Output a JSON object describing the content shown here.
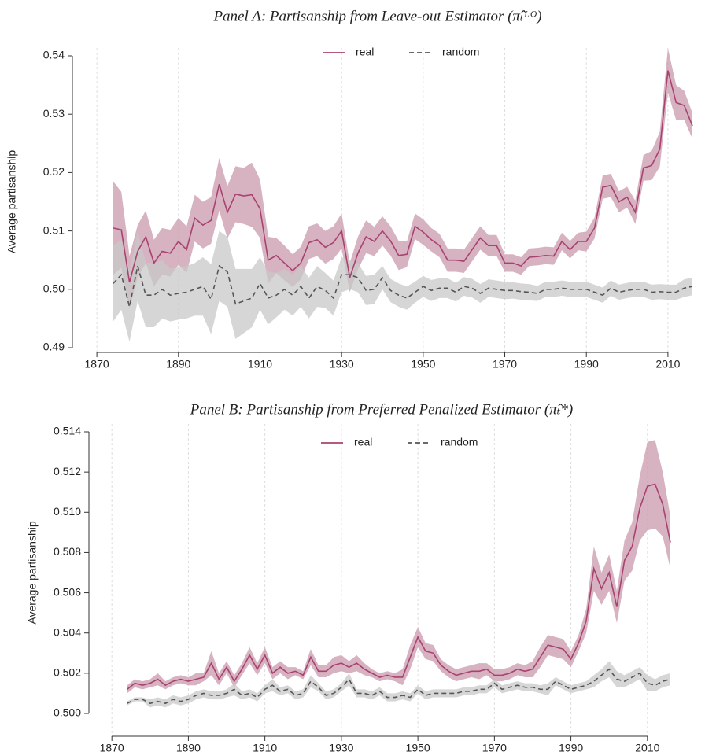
{
  "chart_data": [
    {
      "type": "line",
      "title": "Panel A: Partisanship from Leave-out Estimator (π̂ₜᴸᴼ)",
      "y_label": "Average partisanship",
      "x": [
        1874,
        1876,
        1878,
        1880,
        1882,
        1884,
        1886,
        1888,
        1890,
        1892,
        1894,
        1896,
        1898,
        1900,
        1902,
        1904,
        1906,
        1908,
        1910,
        1912,
        1914,
        1916,
        1918,
        1920,
        1922,
        1924,
        1926,
        1928,
        1930,
        1932,
        1934,
        1936,
        1938,
        1940,
        1942,
        1944,
        1946,
        1948,
        1950,
        1952,
        1954,
        1956,
        1958,
        1960,
        1962,
        1964,
        1966,
        1968,
        1970,
        1972,
        1974,
        1976,
        1978,
        1980,
        1982,
        1984,
        1986,
        1988,
        1990,
        1992,
        1994,
        1996,
        1998,
        2000,
        2002,
        2004,
        2006,
        2008,
        2010,
        2012,
        2014,
        2016
      ],
      "xlim": [
        1864,
        2016
      ],
      "xticks": [
        1870,
        1890,
        1910,
        1930,
        1950,
        1970,
        1990,
        2010
      ],
      "ylim": [
        0.49,
        0.54
      ],
      "yticks": [
        0.49,
        {
          "value": 0.5,
          "label": "0.50"
        },
        0.51,
        0.52,
        0.53,
        0.54
      ],
      "grid": true,
      "series": [
        {
          "name": "real",
          "color": "#a8426f",
          "band_color": "#c99aae",
          "dash": false,
          "values": [
            0.5105,
            0.5102,
            0.5012,
            0.5065,
            0.509,
            0.5045,
            0.5065,
            0.5062,
            0.5082,
            0.5068,
            0.5122,
            0.511,
            0.5118,
            0.518,
            0.5132,
            0.5163,
            0.516,
            0.5162,
            0.5138,
            0.505,
            0.5058,
            0.5045,
            0.5032,
            0.5045,
            0.508,
            0.5085,
            0.5072,
            0.508,
            0.51,
            0.502,
            0.5062,
            0.509,
            0.5082,
            0.51,
            0.5083,
            0.5058,
            0.506,
            0.5108,
            0.5098,
            0.5085,
            0.5075,
            0.505,
            0.505,
            0.5048,
            0.5068,
            0.5088,
            0.5075,
            0.5075,
            0.5045,
            0.5045,
            0.504,
            0.5055,
            0.5056,
            0.5058,
            0.5057,
            0.5082,
            0.5068,
            0.5082,
            0.5082,
            0.5105,
            0.5175,
            0.5178,
            0.515,
            0.5158,
            0.5132,
            0.5208,
            0.5212,
            0.524,
            0.5375,
            0.532,
            0.5315,
            0.528
          ],
          "errors": [
            0.008,
            0.0065,
            0.0045,
            0.0045,
            0.0045,
            0.004,
            0.004,
            0.004,
            0.004,
            0.004,
            0.004,
            0.004,
            0.004,
            0.0045,
            0.0045,
            0.0048,
            0.0048,
            0.0055,
            0.005,
            0.004,
            0.003,
            0.003,
            0.0028,
            0.0028,
            0.0028,
            0.0028,
            0.0028,
            0.0028,
            0.003,
            0.0025,
            0.0028,
            0.0028,
            0.0025,
            0.0025,
            0.0025,
            0.0025,
            0.0022,
            0.0022,
            0.0022,
            0.002,
            0.002,
            0.002,
            0.002,
            0.002,
            0.002,
            0.002,
            0.0018,
            0.0018,
            0.0015,
            0.0015,
            0.0015,
            0.0015,
            0.0015,
            0.0015,
            0.0015,
            0.0015,
            0.0015,
            0.0015,
            0.0017,
            0.0018,
            0.002,
            0.002,
            0.0018,
            0.0018,
            0.002,
            0.0022,
            0.0025,
            0.003,
            0.0038,
            0.003,
            0.0025,
            0.0022
          ]
        },
        {
          "name": "random",
          "color": "#555555",
          "band_color": "#c8c8c8",
          "dash": true,
          "values": [
            0.501,
            0.5025,
            0.497,
            0.504,
            0.499,
            0.499,
            0.5,
            0.499,
            0.4993,
            0.4995,
            0.5,
            0.5005,
            0.4983,
            0.504,
            0.503,
            0.4975,
            0.498,
            0.4985,
            0.501,
            0.4985,
            0.499,
            0.5,
            0.499,
            0.5005,
            0.4985,
            0.5005,
            0.4998,
            0.4985,
            0.5025,
            0.5025,
            0.502,
            0.4998,
            0.5,
            0.502,
            0.4998,
            0.499,
            0.4985,
            0.4995,
            0.5005,
            0.4998,
            0.5002,
            0.5002,
            0.4995,
            0.5005,
            0.5002,
            0.4993,
            0.5002,
            0.5,
            0.4998,
            0.4998,
            0.4996,
            0.4995,
            0.4993,
            0.5,
            0.5,
            0.5002,
            0.5,
            0.5,
            0.5,
            0.4995,
            0.499,
            0.5002,
            0.4995,
            0.4998,
            0.5,
            0.5,
            0.4995,
            0.4996,
            0.4995,
            0.4995,
            0.5002,
            0.5005
          ],
          "errors": [
            0.0065,
            0.006,
            0.006,
            0.006,
            0.0055,
            0.0055,
            0.005,
            0.0045,
            0.0045,
            0.0045,
            0.0045,
            0.005,
            0.006,
            0.006,
            0.006,
            0.006,
            0.0055,
            0.005,
            0.0045,
            0.0045,
            0.0038,
            0.0035,
            0.0035,
            0.0035,
            0.0035,
            0.0035,
            0.003,
            0.003,
            0.003,
            0.0025,
            0.0025,
            0.0025,
            0.0025,
            0.002,
            0.002,
            0.002,
            0.002,
            0.0018,
            0.0018,
            0.0018,
            0.0017,
            0.0017,
            0.0016,
            0.0016,
            0.0016,
            0.0016,
            0.0015,
            0.0015,
            0.0015,
            0.0014,
            0.0014,
            0.0014,
            0.0013,
            0.0013,
            0.0013,
            0.0013,
            0.0013,
            0.0013,
            0.0013,
            0.0013,
            0.0013,
            0.0013,
            0.0013,
            0.0013,
            0.0013,
            0.0013,
            0.0013,
            0.0013,
            0.0013,
            0.0013,
            0.0015,
            0.0015
          ]
        }
      ]
    },
    {
      "type": "line",
      "title": "Panel B: Partisanship from Preferred Penalized Estimator (π̂ₜ*)",
      "y_label": "Average partisanship",
      "x": [
        1874,
        1876,
        1878,
        1880,
        1882,
        1884,
        1886,
        1888,
        1890,
        1892,
        1894,
        1896,
        1898,
        1900,
        1902,
        1904,
        1906,
        1908,
        1910,
        1912,
        1914,
        1916,
        1918,
        1920,
        1922,
        1924,
        1926,
        1928,
        1930,
        1932,
        1934,
        1936,
        1938,
        1940,
        1942,
        1944,
        1946,
        1948,
        1950,
        1952,
        1954,
        1956,
        1958,
        1960,
        1962,
        1964,
        1966,
        1968,
        1970,
        1972,
        1974,
        1976,
        1978,
        1980,
        1982,
        1984,
        1986,
        1988,
        1990,
        1992,
        1994,
        1996,
        1998,
        2000,
        2002,
        2004,
        2006,
        2008,
        2010,
        2012,
        2014,
        2016
      ],
      "xlim": [
        1864,
        2016
      ],
      "xticks": [
        1870,
        1890,
        1910,
        1930,
        1950,
        1970,
        1990,
        2010
      ],
      "ylim": [
        0.5,
        0.514
      ],
      "yticks": [
        {
          "value": 0.5,
          "label": "0.500"
        },
        0.502,
        0.504,
        0.506,
        0.508,
        {
          "value": 0.51,
          "label": "0.510"
        },
        0.512,
        0.514
      ],
      "grid": true,
      "series": [
        {
          "name": "real",
          "color": "#a8426f",
          "band_color": "#c99aae",
          "dash": false,
          "values": [
            0.5012,
            0.5015,
            0.5014,
            0.5015,
            0.5017,
            0.5014,
            0.5016,
            0.5017,
            0.5016,
            0.5017,
            0.5018,
            0.5025,
            0.5017,
            0.5023,
            0.5016,
            0.5022,
            0.5029,
            0.5022,
            0.5029,
            0.502,
            0.5023,
            0.502,
            0.5021,
            0.5019,
            0.5028,
            0.5021,
            0.5021,
            0.5024,
            0.5025,
            0.5023,
            0.5025,
            0.5022,
            0.502,
            0.5018,
            0.5019,
            0.5018,
            0.5018,
            0.5028,
            0.5038,
            0.5031,
            0.503,
            0.5024,
            0.5021,
            0.5019,
            0.502,
            0.5021,
            0.5021,
            0.5022,
            0.5019,
            0.5019,
            0.502,
            0.5022,
            0.5021,
            0.5022,
            0.5028,
            0.5034,
            0.5033,
            0.5032,
            0.5027,
            0.5035,
            0.5046,
            0.5072,
            0.5062,
            0.507,
            0.5053,
            0.5076,
            0.5083,
            0.5102,
            0.5113,
            0.5114,
            0.5104,
            0.5085
          ],
          "errors": [
            0.0002,
            0.0002,
            0.0002,
            0.0002,
            0.0003,
            0.0002,
            0.0002,
            0.0002,
            0.0002,
            0.0003,
            0.0002,
            0.0006,
            0.0003,
            0.0003,
            0.0003,
            0.0003,
            0.0004,
            0.0003,
            0.0004,
            0.0003,
            0.0003,
            0.0003,
            0.0002,
            0.0002,
            0.0004,
            0.0003,
            0.0003,
            0.0004,
            0.0004,
            0.0003,
            0.0004,
            0.0003,
            0.0002,
            0.0002,
            0.0002,
            0.0002,
            0.0004,
            0.0006,
            0.0005,
            0.0004,
            0.0004,
            0.0003,
            0.0003,
            0.0003,
            0.0003,
            0.0003,
            0.0004,
            0.0003,
            0.0003,
            0.0003,
            0.0003,
            0.0003,
            0.0003,
            0.0004,
            0.0005,
            0.0005,
            0.0005,
            0.0005,
            0.0004,
            0.0004,
            0.0006,
            0.0011,
            0.0008,
            0.0009,
            0.0008,
            0.001,
            0.0012,
            0.0016,
            0.0022,
            0.0022,
            0.0016,
            0.0013
          ]
        },
        {
          "name": "random",
          "color": "#555555",
          "band_color": "#c8c8c8",
          "dash": true,
          "values": [
            0.5005,
            0.5007,
            0.5007,
            0.5005,
            0.5006,
            0.5005,
            0.5007,
            0.5006,
            0.5007,
            0.5009,
            0.501,
            0.5009,
            0.5009,
            0.501,
            0.5012,
            0.5009,
            0.501,
            0.5008,
            0.5012,
            0.5014,
            0.5011,
            0.5012,
            0.5009,
            0.501,
            0.5016,
            0.5013,
            0.5009,
            0.501,
            0.5013,
            0.5017,
            0.501,
            0.501,
            0.5009,
            0.5011,
            0.5008,
            0.5008,
            0.5009,
            0.5008,
            0.5012,
            0.5009,
            0.501,
            0.501,
            0.501,
            0.501,
            0.5011,
            0.5011,
            0.5012,
            0.5012,
            0.5015,
            0.5012,
            0.5013,
            0.5014,
            0.5013,
            0.5013,
            0.5012,
            0.5012,
            0.5016,
            0.5014,
            0.5012,
            0.5013,
            0.5014,
            0.5016,
            0.5019,
            0.5022,
            0.5017,
            0.5016,
            0.5018,
            0.502,
            0.5015,
            0.5014,
            0.5016,
            0.5017
          ],
          "errors": [
            0.0001,
            0.0001,
            0.0001,
            0.0002,
            0.0002,
            0.0002,
            0.0002,
            0.0002,
            0.0002,
            0.0002,
            0.0002,
            0.0002,
            0.0002,
            0.0002,
            0.0003,
            0.0002,
            0.0002,
            0.0002,
            0.0002,
            0.0003,
            0.0002,
            0.0002,
            0.0002,
            0.0002,
            0.0003,
            0.0002,
            0.0002,
            0.0002,
            0.0002,
            0.0003,
            0.0002,
            0.0002,
            0.0002,
            0.0002,
            0.0002,
            0.0002,
            0.0002,
            0.0002,
            0.0002,
            0.0002,
            0.0002,
            0.0002,
            0.0002,
            0.0002,
            0.0002,
            0.0002,
            0.0002,
            0.0002,
            0.0002,
            0.0002,
            0.0002,
            0.0002,
            0.0002,
            0.0002,
            0.0002,
            0.0003,
            0.0002,
            0.0002,
            0.0002,
            0.0002,
            0.0002,
            0.0003,
            0.0003,
            0.0004,
            0.0004,
            0.0003,
            0.0003,
            0.0003,
            0.0004,
            0.0003,
            0.0003,
            0.0003
          ]
        }
      ]
    }
  ]
}
